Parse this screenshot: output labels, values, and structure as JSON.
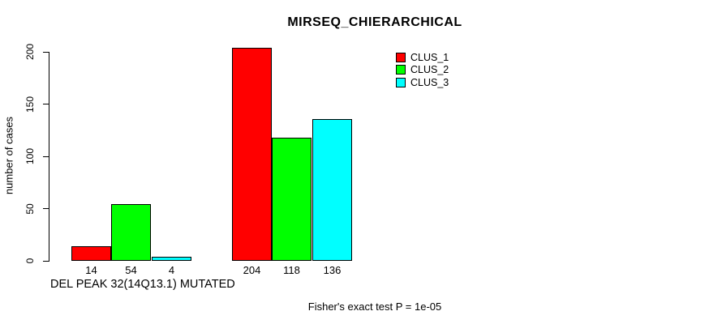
{
  "title": "MIRSEQ_CHIERARCHICAL",
  "y_axis": {
    "label": "number of cases"
  },
  "x_axis": {
    "label": "DEL PEAK 32(14Q13.1) MUTATED"
  },
  "footer": "Fisher's exact test P = 1e-05",
  "legend": {
    "items": [
      {
        "label": "CLUS_1",
        "color": "#FF0000"
      },
      {
        "label": "CLUS_2",
        "color": "#00FF00"
      },
      {
        "label": "CLUS_3",
        "color": "#00FFFF"
      }
    ]
  },
  "chart_data": {
    "type": "bar",
    "title": "MIRSEQ_CHIERARCHICAL",
    "xlabel": "DEL PEAK 32(14Q13.1) MUTATED",
    "ylabel": "number of cases",
    "ylim": [
      0,
      200
    ],
    "yticks": [
      0,
      50,
      100,
      150,
      200
    ],
    "grid": false,
    "legend_position": "top-right-inside",
    "groups": [
      "group-1",
      "group-2"
    ],
    "series": [
      {
        "name": "CLUS_1",
        "color": "#FF0000",
        "values": [
          14,
          204
        ]
      },
      {
        "name": "CLUS_2",
        "color": "#00FF00",
        "values": [
          54,
          118
        ]
      },
      {
        "name": "CLUS_3",
        "color": "#00FFFF",
        "values": [
          4,
          136
        ]
      }
    ],
    "bar_value_labels": [
      [
        14,
        54,
        4
      ],
      [
        204,
        118,
        136
      ]
    ],
    "annotation": "Fisher's exact test P = 1e-05"
  }
}
